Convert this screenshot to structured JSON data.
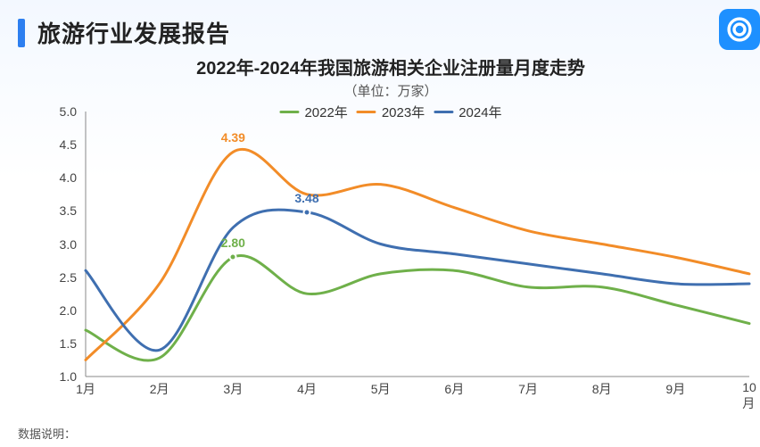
{
  "header": {
    "title": "旅游行业发展报告"
  },
  "logo": {
    "bg": "#1e90ff",
    "ring": "#ffffff"
  },
  "footnote": "数据说明：",
  "chart": {
    "type": "line",
    "title": "2022年-2024年我国旅游相关企业注册量月度走势",
    "subtitle": "（单位：万家）",
    "title_fontsize": 20,
    "subtitle_fontsize": 15,
    "background_color": "#ffffff",
    "axis_color": "#888888",
    "label_fontsize": 14,
    "x_categories": [
      "1月",
      "2月",
      "3月",
      "4月",
      "5月",
      "6月",
      "7月",
      "8月",
      "9月",
      "10月"
    ],
    "ylim": [
      1.0,
      5.0
    ],
    "ytick_step": 0.5,
    "yticks": [
      "1.0",
      "1.5",
      "2.0",
      "2.5",
      "3.0",
      "3.5",
      "4.0",
      "4.5",
      "5.0"
    ],
    "line_width": 3,
    "series": [
      {
        "name": "2022年",
        "color": "#6fb04a",
        "values": [
          1.7,
          1.28,
          2.8,
          2.25,
          2.55,
          2.6,
          2.35,
          2.35,
          2.08,
          1.8
        ],
        "label": {
          "index": 2,
          "text": "2.80",
          "dx": 0,
          "dy": -16,
          "marker": true
        }
      },
      {
        "name": "2023年",
        "color": "#f28c28",
        "values": [
          1.25,
          2.4,
          4.39,
          3.75,
          3.9,
          3.55,
          3.2,
          3.0,
          2.8,
          2.55
        ],
        "label": {
          "index": 2,
          "text": "4.39",
          "dx": 0,
          "dy": -16,
          "marker": false
        }
      },
      {
        "name": "2024年",
        "color": "#3f6fb0",
        "values": [
          2.6,
          1.4,
          3.25,
          3.48,
          3.0,
          2.85,
          2.7,
          2.55,
          2.4,
          2.4
        ],
        "label": {
          "index": 3,
          "text": "3.48",
          "dx": 0,
          "dy": -16,
          "marker": true
        }
      }
    ]
  }
}
